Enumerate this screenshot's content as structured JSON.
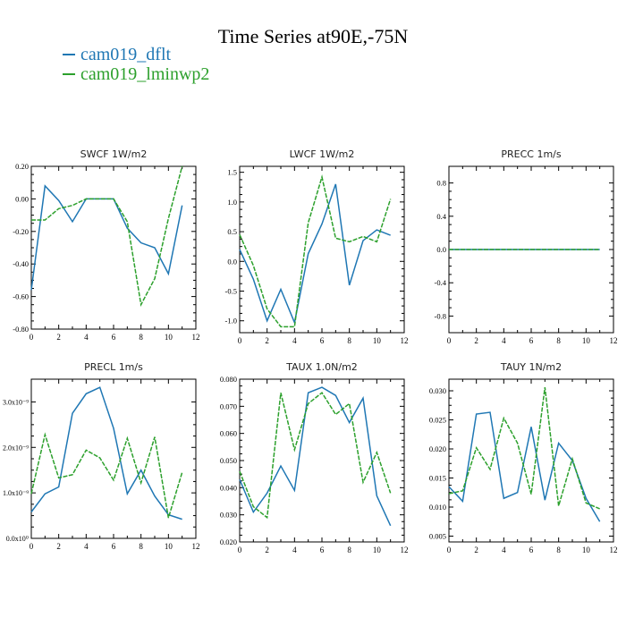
{
  "page": {
    "title": "Time Series at90E,-75N"
  },
  "legend": [
    {
      "label": "cam019_dflt",
      "color": "#1f77b4"
    },
    {
      "label": "cam019_lminwp2",
      "color": "#2ca02c"
    }
  ],
  "chart_data": [
    {
      "type": "line",
      "title": "SWCF   1W/m2",
      "x": [
        0,
        1,
        2,
        3,
        4,
        5,
        6,
        7,
        8,
        9,
        10,
        11
      ],
      "xlim": [
        0,
        12
      ],
      "xticks": [
        "0",
        "2",
        "4",
        "6",
        "8",
        "10",
        "12"
      ],
      "ylim": [
        -0.8,
        0.2
      ],
      "yticks": [
        "0.20",
        "0.00",
        "-0.20",
        "-0.40",
        "-0.60",
        "-0.80"
      ],
      "series": [
        {
          "name": "cam019_dflt",
          "values": [
            -0.56,
            0.08,
            -0.01,
            -0.14,
            0.0,
            0.0,
            0.0,
            -0.18,
            -0.27,
            -0.3,
            -0.46,
            -0.04
          ]
        },
        {
          "name": "cam019_lminwp2",
          "values": [
            -0.13,
            -0.13,
            -0.06,
            -0.04,
            0.0,
            0.0,
            0.0,
            -0.14,
            -0.65,
            -0.49,
            -0.12,
            0.2
          ]
        }
      ]
    },
    {
      "type": "line",
      "title": "LWCF   1W/m2",
      "x": [
        0,
        1,
        2,
        3,
        4,
        5,
        6,
        7,
        8,
        9,
        10,
        11
      ],
      "xlim": [
        0,
        12
      ],
      "xticks": [
        "0",
        "2",
        "4",
        "6",
        "8",
        "10",
        "12"
      ],
      "ylim": [
        -1.2,
        1.6
      ],
      "yticks": [
        "1.5",
        "1.0",
        "0.5",
        "0.0",
        "-0.5",
        "-1.0"
      ],
      "series": [
        {
          "name": "cam019_dflt",
          "values": [
            0.2,
            -0.3,
            -1.0,
            -0.47,
            -1.03,
            0.13,
            0.63,
            1.3,
            -0.4,
            0.35,
            0.53,
            0.44
          ]
        },
        {
          "name": "cam019_lminwp2",
          "values": [
            0.45,
            -0.07,
            -0.8,
            -1.1,
            -1.1,
            0.65,
            1.42,
            0.39,
            0.33,
            0.42,
            0.33,
            1.05
          ]
        }
      ]
    },
    {
      "type": "line",
      "title": "PRECC   1m/s",
      "x": [
        0,
        1,
        2,
        3,
        4,
        5,
        6,
        7,
        8,
        9,
        10,
        11
      ],
      "xlim": [
        0,
        12
      ],
      "xticks": [
        "0",
        "2",
        "4",
        "6",
        "8",
        "10",
        "12"
      ],
      "ylim": [
        -1.0,
        1.0
      ],
      "yticks": [
        "0.8",
        "0.4",
        "0.0",
        "-0.4",
        "-0.8"
      ],
      "series": [
        {
          "name": "cam019_dflt",
          "values": [
            0,
            0,
            0,
            0,
            0,
            0,
            0,
            0,
            0,
            0,
            0,
            0
          ]
        },
        {
          "name": "cam019_lminwp2",
          "values": [
            0,
            0,
            0,
            0,
            0,
            0,
            0,
            0,
            0,
            0,
            0,
            0
          ]
        }
      ]
    },
    {
      "type": "line",
      "title": "PRECL   1m/s",
      "x": [
        0,
        1,
        2,
        3,
        4,
        5,
        6,
        7,
        8,
        9,
        10,
        11
      ],
      "xlim": [
        0,
        12
      ],
      "xticks": [
        "0",
        "2",
        "4",
        "6",
        "8",
        "10",
        "12"
      ],
      "ylim": [
        0.0,
        3.5
      ],
      "ylabel_suffix": "x10⁻⁹",
      "yticks": [
        "3.0x10⁻⁹",
        "2.0x10⁻⁹",
        "1.0x10⁻⁹",
        "0.0x10⁰"
      ],
      "series": [
        {
          "name": "cam019_dflt",
          "values": [
            0.58,
            0.98,
            1.13,
            2.75,
            3.18,
            3.32,
            2.42,
            0.98,
            1.5,
            0.93,
            0.52,
            0.42
          ]
        },
        {
          "name": "cam019_lminwp2",
          "values": [
            0.98,
            2.28,
            1.33,
            1.4,
            1.94,
            1.77,
            1.28,
            2.2,
            1.22,
            2.23,
            0.45,
            1.45
          ]
        }
      ]
    },
    {
      "type": "line",
      "title": "TAUX   1.0N/m2",
      "x": [
        0,
        1,
        2,
        3,
        4,
        5,
        6,
        7,
        8,
        9,
        10,
        11
      ],
      "xlim": [
        0,
        12
      ],
      "xticks": [
        "0",
        "2",
        "4",
        "6",
        "8",
        "10",
        "12"
      ],
      "ylim": [
        0.02,
        0.08
      ],
      "yticks": [
        "0.080",
        "0.070",
        "0.060",
        "0.050",
        "0.040",
        "0.030",
        "0.020"
      ],
      "series": [
        {
          "name": "cam019_dflt",
          "values": [
            0.043,
            0.031,
            0.038,
            0.048,
            0.039,
            0.075,
            0.077,
            0.074,
            0.064,
            0.073,
            0.037,
            0.026
          ]
        },
        {
          "name": "cam019_lminwp2",
          "values": [
            0.046,
            0.033,
            0.029,
            0.075,
            0.054,
            0.071,
            0.075,
            0.067,
            0.071,
            0.042,
            0.053,
            0.038
          ]
        }
      ]
    },
    {
      "type": "line",
      "title": "TAUY   1N/m2",
      "x": [
        0,
        1,
        2,
        3,
        4,
        5,
        6,
        7,
        8,
        9,
        10,
        11
      ],
      "xlim": [
        0,
        12
      ],
      "xticks": [
        "0",
        "2",
        "4",
        "6",
        "8",
        "10",
        "12"
      ],
      "ylim": [
        0.004,
        0.032
      ],
      "yticks": [
        "0.030",
        "0.025",
        "0.020",
        "0.015",
        "0.010",
        "0.005"
      ],
      "series": [
        {
          "name": "cam019_dflt",
          "values": [
            0.0135,
            0.011,
            0.026,
            0.0263,
            0.0115,
            0.0125,
            0.0238,
            0.0112,
            0.021,
            0.018,
            0.0115,
            0.0075
          ]
        },
        {
          "name": "cam019_lminwp2",
          "values": [
            0.0123,
            0.0128,
            0.0202,
            0.0165,
            0.0253,
            0.021,
            0.0122,
            0.0306,
            0.0102,
            0.0183,
            0.0107,
            0.0097
          ]
        }
      ]
    }
  ]
}
